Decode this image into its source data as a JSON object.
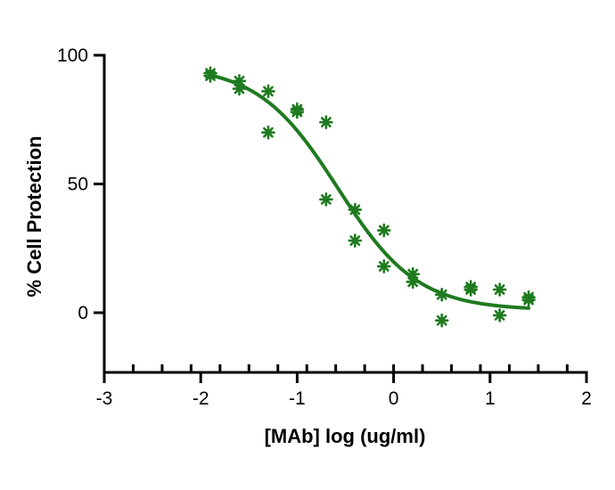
{
  "chart_data": {
    "type": "scatter",
    "title": "",
    "xlabel": "[MAb] log (ug/ml)",
    "ylabel": "% Cell Protection",
    "xlim": [
      -3,
      2
    ],
    "ylim": [
      -25,
      100
    ],
    "x_major_ticks": [
      -3,
      -2,
      -1,
      0,
      1,
      2
    ],
    "y_major_ticks": [
      0,
      50,
      100
    ],
    "x_tick_labels": [
      "-3",
      "-2",
      "-1",
      "0",
      "1",
      "2"
    ],
    "y_tick_labels": [
      "0",
      "50",
      "100"
    ],
    "grid": false,
    "legend": "none",
    "color": "#1f7a1f",
    "points": [
      {
        "x": -1.9,
        "y": 92
      },
      {
        "x": -1.9,
        "y": 93
      },
      {
        "x": -1.6,
        "y": 87
      },
      {
        "x": -1.6,
        "y": 90
      },
      {
        "x": -1.3,
        "y": 86
      },
      {
        "x": -1.3,
        "y": 70
      },
      {
        "x": -1.0,
        "y": 79
      },
      {
        "x": -1.0,
        "y": 78
      },
      {
        "x": -0.7,
        "y": 74
      },
      {
        "x": -0.7,
        "y": 44
      },
      {
        "x": -0.4,
        "y": 40
      },
      {
        "x": -0.4,
        "y": 28
      },
      {
        "x": -0.1,
        "y": 32
      },
      {
        "x": -0.1,
        "y": 18
      },
      {
        "x": 0.2,
        "y": 12
      },
      {
        "x": 0.2,
        "y": 15
      },
      {
        "x": 0.5,
        "y": 7
      },
      {
        "x": 0.5,
        "y": -3
      },
      {
        "x": 0.8,
        "y": 10
      },
      {
        "x": 0.8,
        "y": 9
      },
      {
        "x": 1.1,
        "y": 9
      },
      {
        "x": 1.1,
        "y": -1
      },
      {
        "x": 1.4,
        "y": 6
      },
      {
        "x": 1.4,
        "y": 5
      }
    ],
    "fit": {
      "model": "four-parameter logistic",
      "top": 96,
      "bottom": 1,
      "log_ec50": -0.58,
      "hill_slope": -1.05,
      "x_range": [
        -1.9,
        1.4
      ]
    }
  }
}
